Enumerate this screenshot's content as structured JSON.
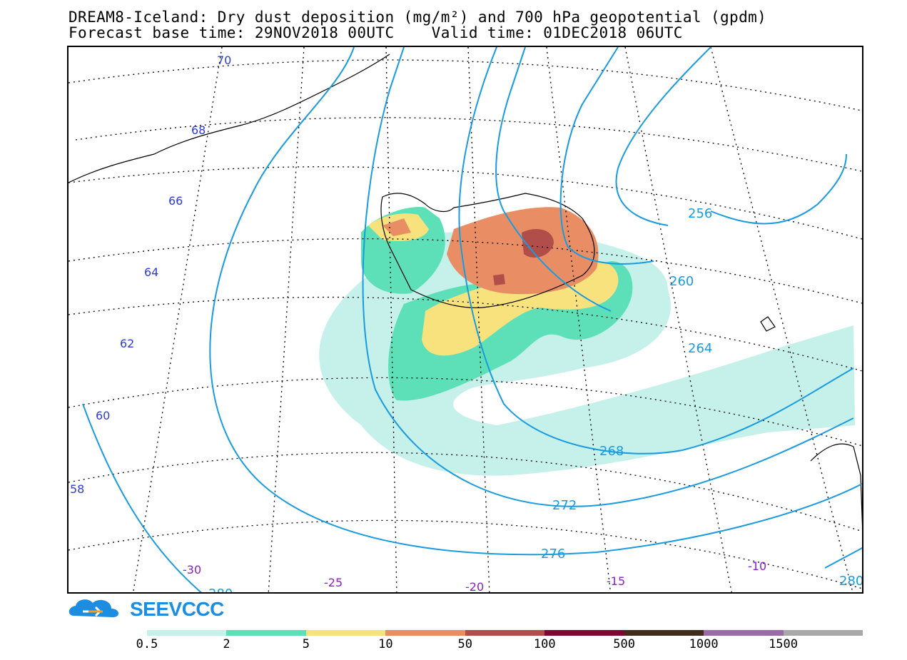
{
  "title": {
    "line1": "DREAM8-Iceland: Dry dust deposition (mg/m²) and 700 hPa geopotential (gpdm)",
    "line2": "Forecast base time: 29NOV2018 00UTC    Valid time: 01DEC2018 06UTC"
  },
  "map": {
    "latitude_labels": [
      "70",
      "68",
      "66",
      "64",
      "62",
      "60",
      "58"
    ],
    "longitude_labels": [
      "-30",
      "-25",
      "-20",
      "-15",
      "-10"
    ],
    "geopotential_labels": [
      "256",
      "260",
      "264",
      "268",
      "272",
      "276",
      "280",
      "280"
    ],
    "colors": {
      "latitude_label": "#2b3cd8",
      "longitude_label": "#8a1fc9",
      "geopotential_contour": "#1a9be0",
      "coastline": "#000000"
    }
  },
  "branding": {
    "logo_text": "SEEVCCC",
    "logo_icon": "cloud-arrow-icon",
    "logo_color": "#1c8de0"
  },
  "legend": {
    "colors": [
      "#c6f0ea",
      "#5de0b8",
      "#f7e27e",
      "#e98e64",
      "#b24e4a",
      "#7e0633",
      "#402b1d",
      "#9a6ba6",
      "#a8a8a8"
    ],
    "ticks": [
      "0.5",
      "2",
      "5",
      "10",
      "50",
      "100",
      "500",
      "1000",
      "1500"
    ]
  }
}
